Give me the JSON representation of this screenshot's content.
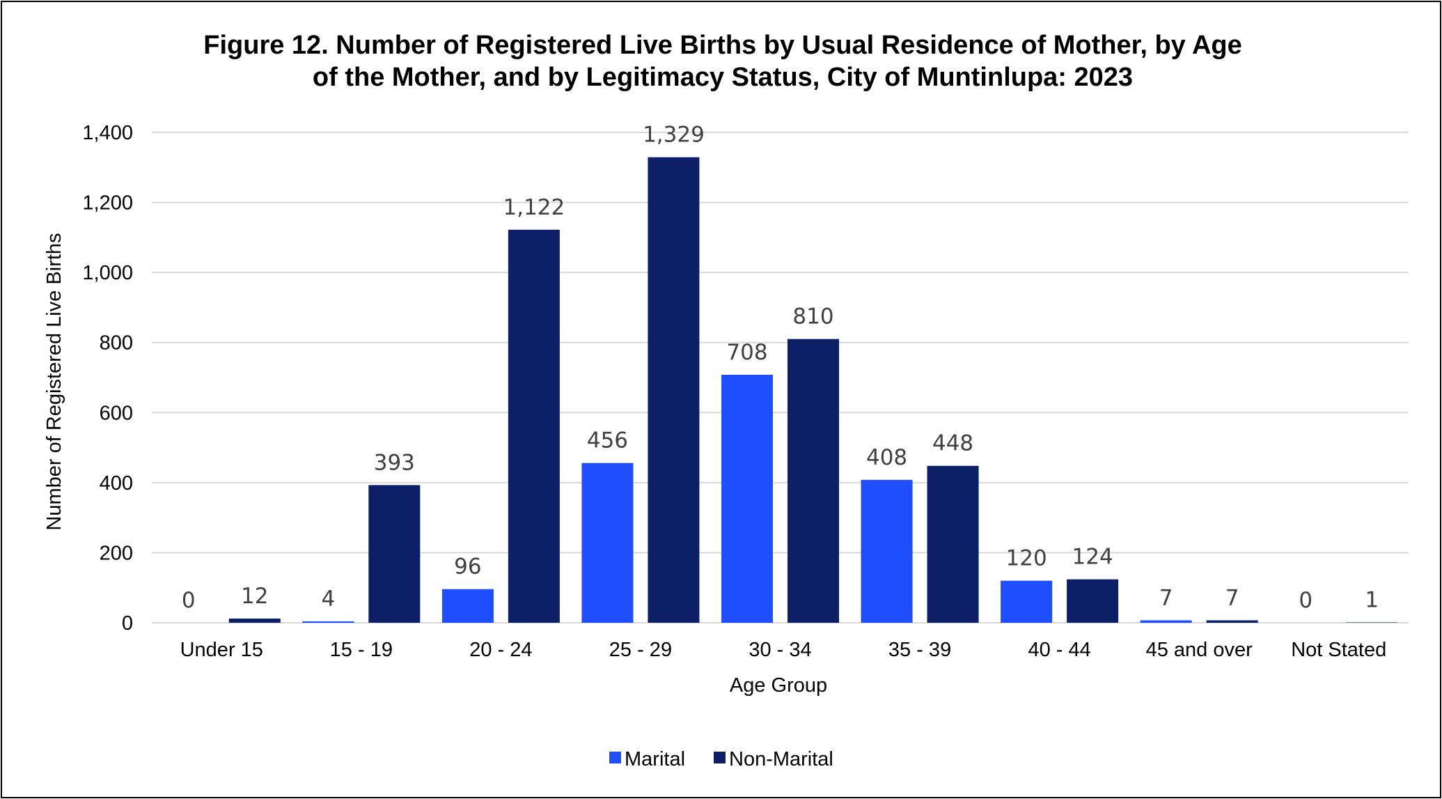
{
  "chart_data": {
    "type": "bar",
    "title_lines": [
      "Figure 12. Number of Registered Live Births by Usual Residence of Mother, by Age",
      "of the Mother, and by Legitimacy Status, City of Muntinlupa: 2023"
    ],
    "xlabel": "Age Group",
    "ylabel": "Number of Registered Live Births",
    "categories": [
      "Under 15",
      "15 - 19",
      "20 - 24",
      "25 - 29",
      "30 - 34",
      "35 - 39",
      "40 - 44",
      "45 and over",
      "Not Stated"
    ],
    "series": [
      {
        "name": "Marital",
        "color": "#1f4eff",
        "values": [
          0,
          4,
          96,
          456,
          708,
          408,
          120,
          7,
          0
        ],
        "labels": [
          "0",
          "4",
          "96",
          "456",
          "708",
          "408",
          "120",
          "7",
          "0"
        ]
      },
      {
        "name": "Non-Marital",
        "color": "#0d1f66",
        "values": [
          12,
          393,
          1122,
          1329,
          810,
          448,
          124,
          7,
          1
        ],
        "labels": [
          "12",
          "393",
          "1,122",
          "1,329",
          "810",
          "448",
          "124",
          "7",
          "1"
        ]
      }
    ],
    "ylim": [
      0,
      1400
    ],
    "yticks": [
      0,
      200,
      400,
      600,
      800,
      1000,
      1200,
      1400
    ],
    "ytick_labels": [
      "0",
      "200",
      "400",
      "600",
      "800",
      "1,000",
      "1,200",
      "1,400"
    ],
    "grid": true,
    "gridline_color": "#d9d9d9",
    "legend_position": "bottom"
  }
}
